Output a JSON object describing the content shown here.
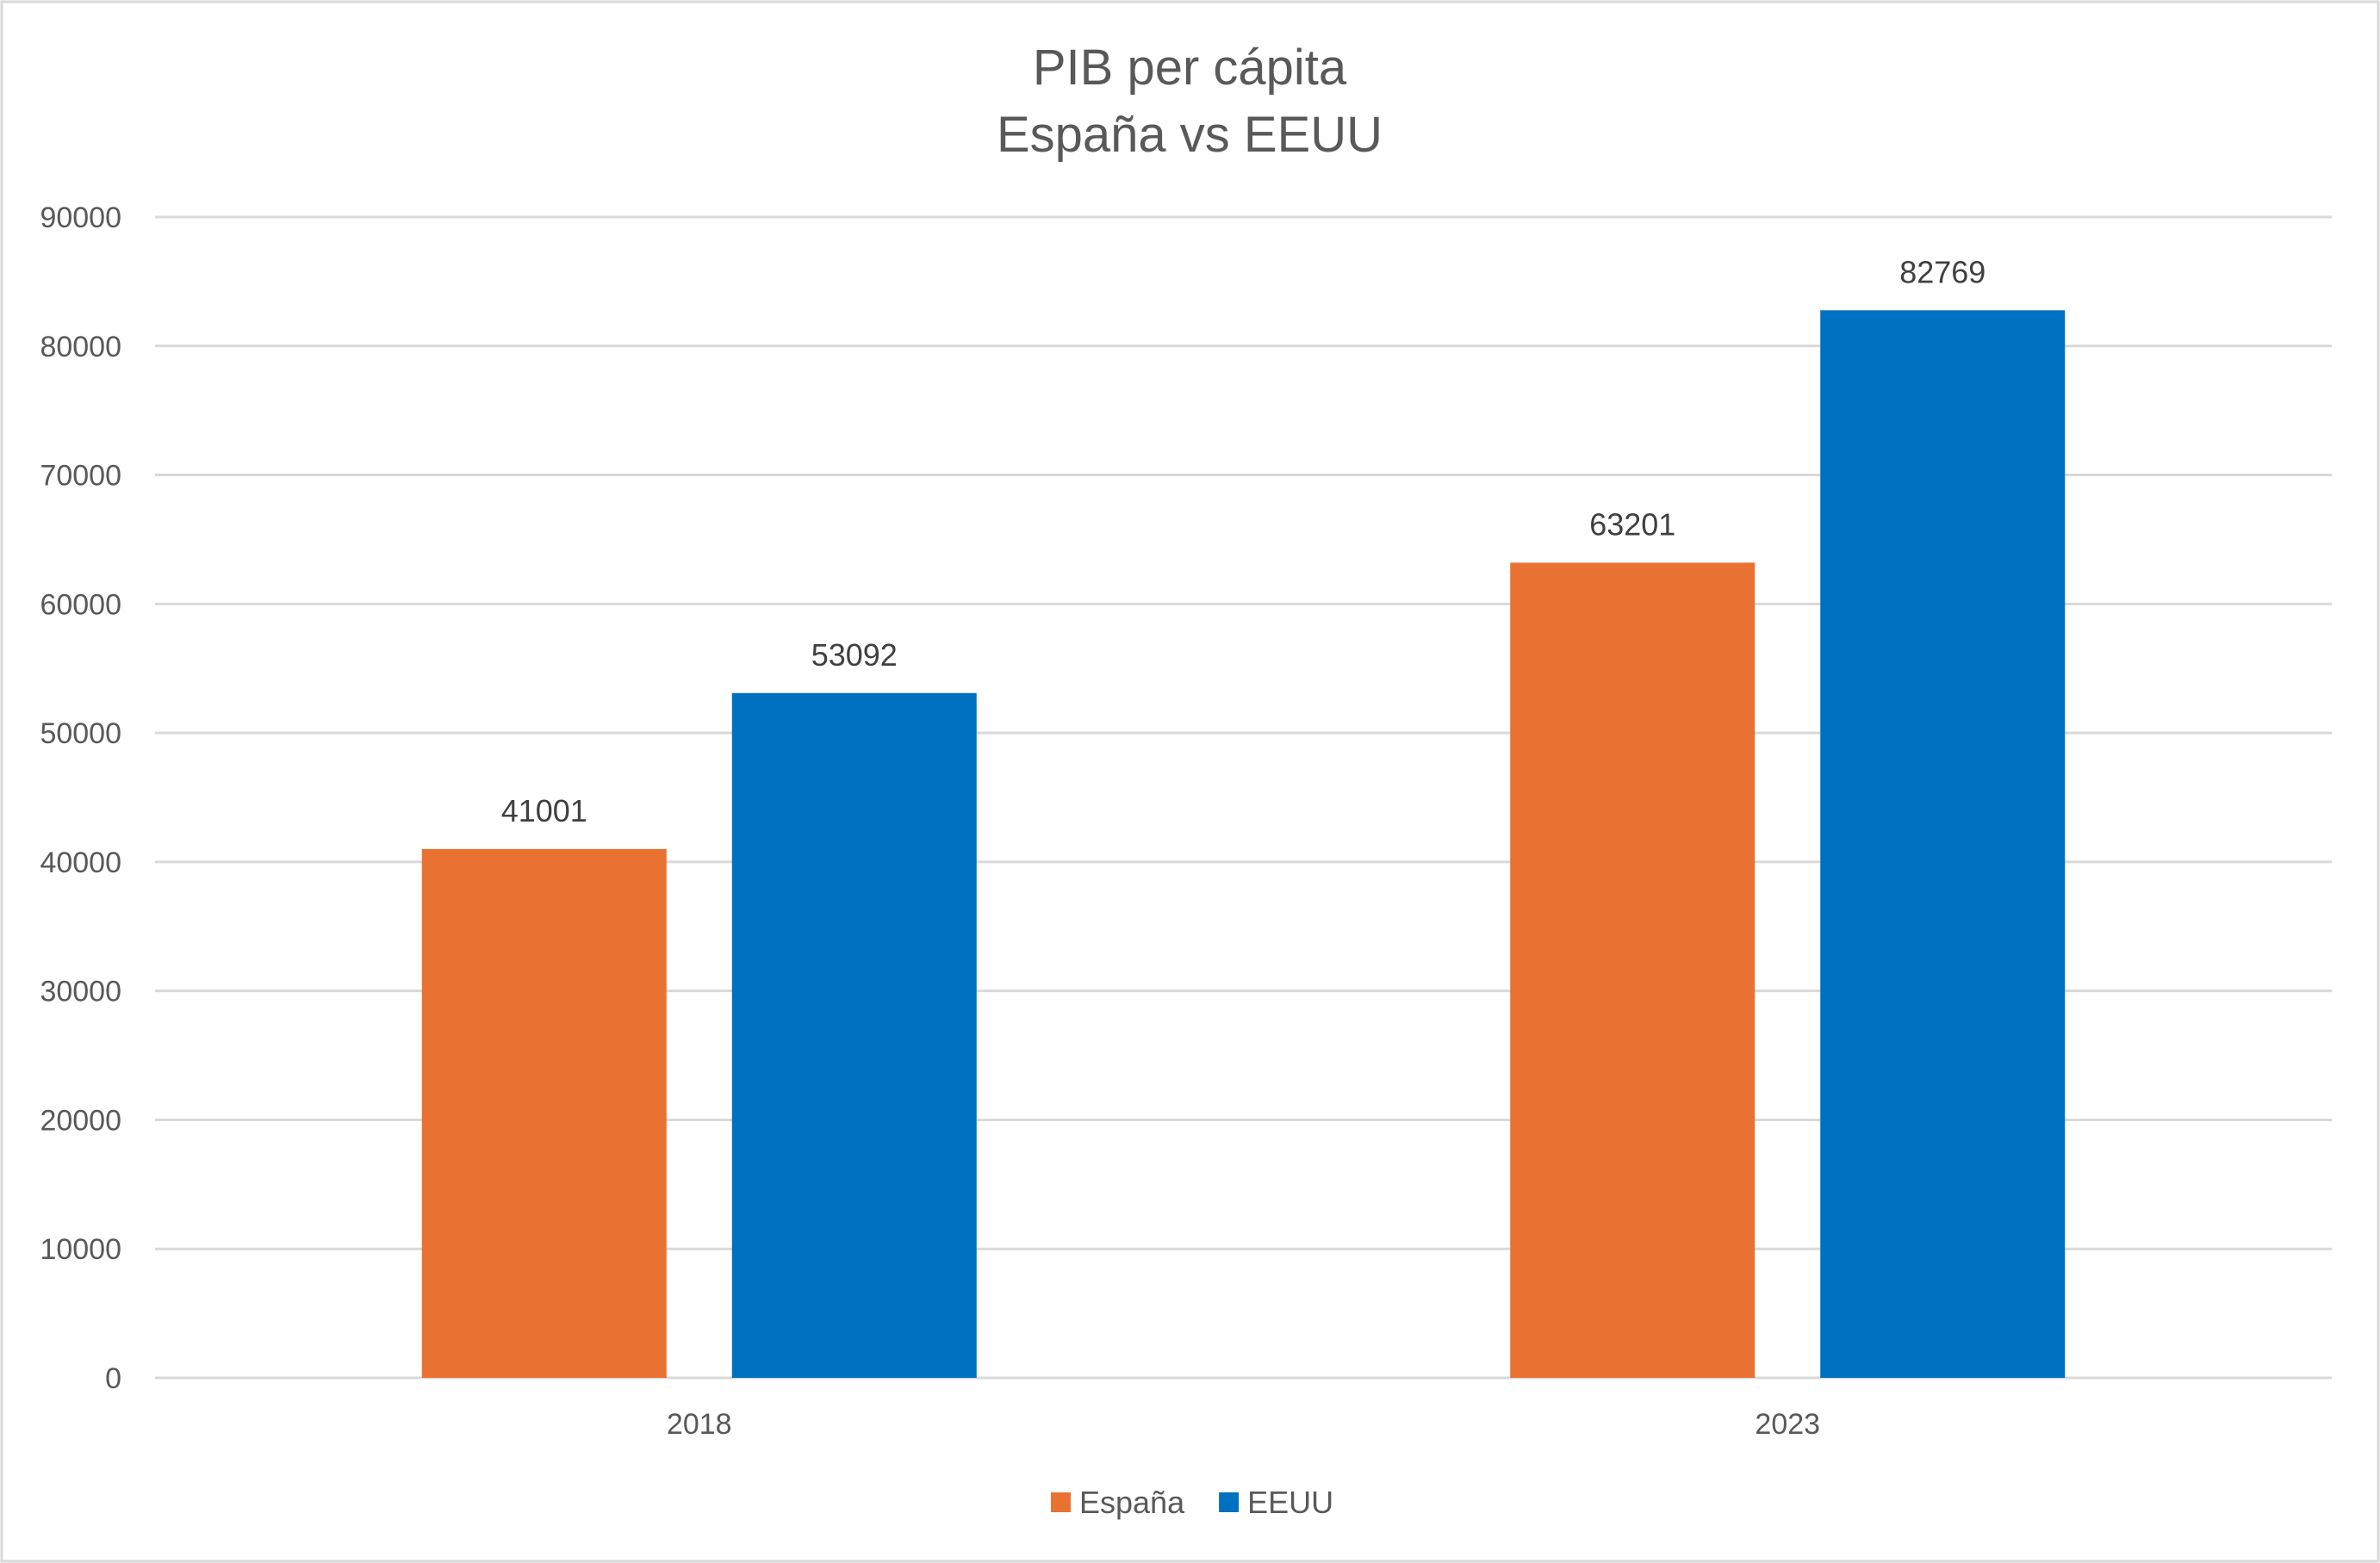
{
  "chart_data": {
    "type": "bar",
    "title": [
      "PIB per cápita",
      "España vs EEUU"
    ],
    "categories": [
      "2018",
      "2023"
    ],
    "series": [
      {
        "name": "España",
        "values": [
          41001,
          63201
        ],
        "color": "#E97132"
      },
      {
        "name": "EEUU",
        "values": [
          53092,
          82769
        ],
        "color": "#0070C0"
      }
    ],
    "ylim": [
      0,
      90000
    ],
    "yticks": [
      0,
      10000,
      20000,
      30000,
      40000,
      50000,
      60000,
      70000,
      80000,
      90000
    ],
    "grid": true,
    "data_labels": true,
    "legend": "bottom",
    "xlabel": "",
    "ylabel": ""
  }
}
